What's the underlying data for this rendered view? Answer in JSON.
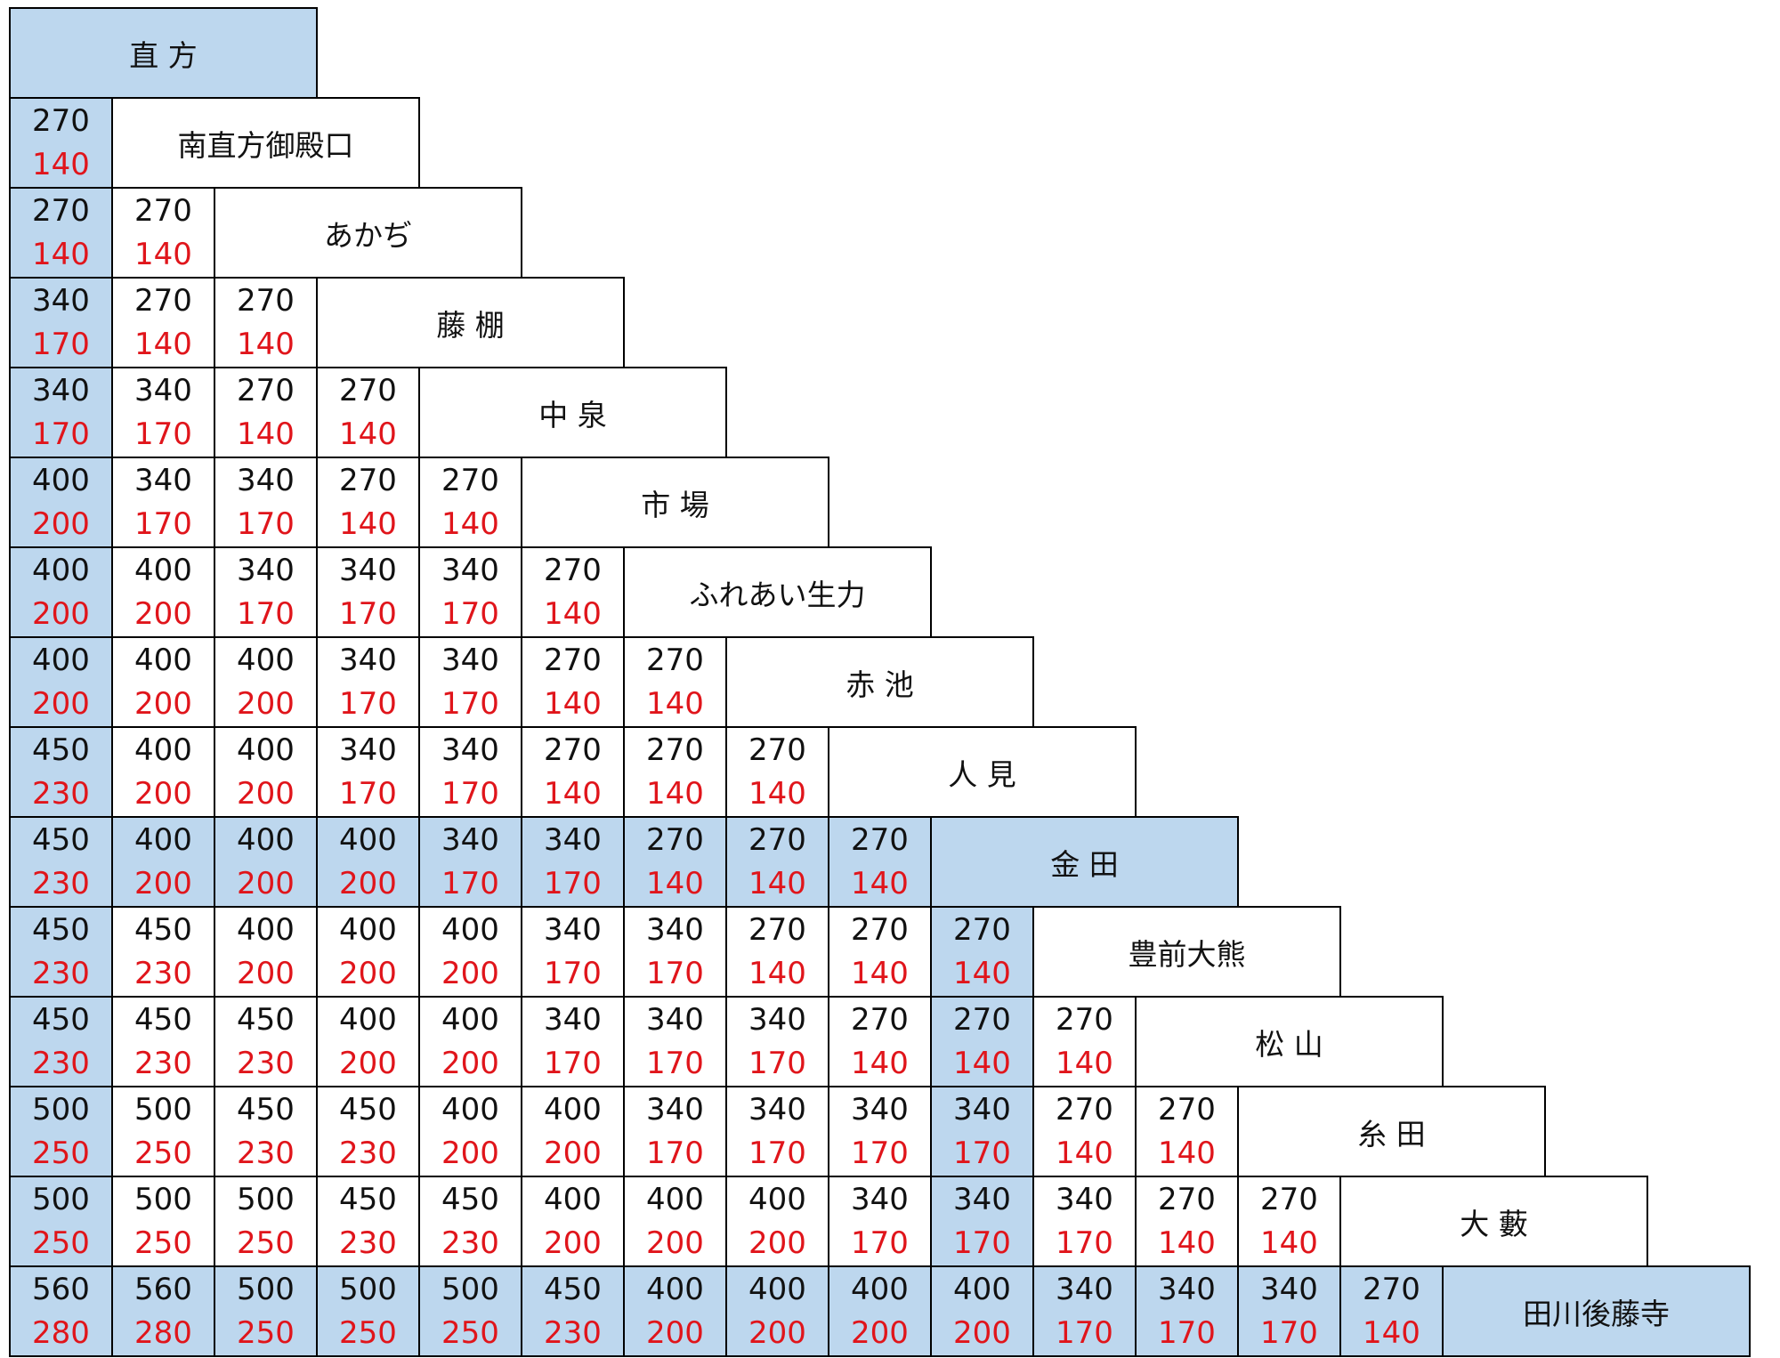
{
  "colors": {
    "highlight": "#bdd7ee",
    "adult_fare": "#111111",
    "child_fare": "#e0151b",
    "border": "#000000"
  },
  "stations": [
    "直 方",
    "南直方御殿口",
    "あかぢ",
    "藤 棚",
    "中 泉",
    "市 場",
    "ふれあい生力",
    "赤 池",
    "人 見",
    "金 田",
    "豊前大熊",
    "松 山",
    "糸 田",
    "大 藪",
    "田川後藤寺"
  ],
  "highlight": {
    "stations": [
      0,
      9,
      14
    ],
    "columns": [
      0,
      9
    ],
    "rows": [
      9,
      14
    ]
  },
  "fares": [
    [],
    [
      [
        "270",
        "140"
      ]
    ],
    [
      [
        "270",
        "140"
      ],
      [
        "270",
        "140"
      ]
    ],
    [
      [
        "340",
        "170"
      ],
      [
        "270",
        "140"
      ],
      [
        "270",
        "140"
      ]
    ],
    [
      [
        "340",
        "170"
      ],
      [
        "340",
        "170"
      ],
      [
        "270",
        "140"
      ],
      [
        "270",
        "140"
      ]
    ],
    [
      [
        "400",
        "200"
      ],
      [
        "340",
        "170"
      ],
      [
        "340",
        "170"
      ],
      [
        "270",
        "140"
      ],
      [
        "270",
        "140"
      ]
    ],
    [
      [
        "400",
        "200"
      ],
      [
        "400",
        "200"
      ],
      [
        "340",
        "170"
      ],
      [
        "340",
        "170"
      ],
      [
        "340",
        "170"
      ],
      [
        "270",
        "140"
      ]
    ],
    [
      [
        "400",
        "200"
      ],
      [
        "400",
        "200"
      ],
      [
        "400",
        "200"
      ],
      [
        "340",
        "170"
      ],
      [
        "340",
        "170"
      ],
      [
        "270",
        "140"
      ],
      [
        "270",
        "140"
      ]
    ],
    [
      [
        "450",
        "230"
      ],
      [
        "400",
        "200"
      ],
      [
        "400",
        "200"
      ],
      [
        "340",
        "170"
      ],
      [
        "340",
        "170"
      ],
      [
        "270",
        "140"
      ],
      [
        "270",
        "140"
      ],
      [
        "270",
        "140"
      ]
    ],
    [
      [
        "450",
        "230"
      ],
      [
        "400",
        "200"
      ],
      [
        "400",
        "200"
      ],
      [
        "400",
        "200"
      ],
      [
        "340",
        "170"
      ],
      [
        "340",
        "170"
      ],
      [
        "270",
        "140"
      ],
      [
        "270",
        "140"
      ],
      [
        "270",
        "140"
      ]
    ],
    [
      [
        "450",
        "230"
      ],
      [
        "450",
        "230"
      ],
      [
        "400",
        "200"
      ],
      [
        "400",
        "200"
      ],
      [
        "400",
        "200"
      ],
      [
        "340",
        "170"
      ],
      [
        "340",
        "170"
      ],
      [
        "270",
        "140"
      ],
      [
        "270",
        "140"
      ],
      [
        "270",
        "140"
      ]
    ],
    [
      [
        "450",
        "230"
      ],
      [
        "450",
        "230"
      ],
      [
        "450",
        "230"
      ],
      [
        "400",
        "200"
      ],
      [
        "400",
        "200"
      ],
      [
        "340",
        "170"
      ],
      [
        "340",
        "170"
      ],
      [
        "340",
        "170"
      ],
      [
        "270",
        "140"
      ],
      [
        "270",
        "140"
      ],
      [
        "270",
        "140"
      ]
    ],
    [
      [
        "500",
        "250"
      ],
      [
        "500",
        "250"
      ],
      [
        "450",
        "230"
      ],
      [
        "450",
        "230"
      ],
      [
        "400",
        "200"
      ],
      [
        "400",
        "200"
      ],
      [
        "340",
        "170"
      ],
      [
        "340",
        "170"
      ],
      [
        "340",
        "170"
      ],
      [
        "340",
        "170"
      ],
      [
        "270",
        "140"
      ],
      [
        "270",
        "140"
      ]
    ],
    [
      [
        "500",
        "250"
      ],
      [
        "500",
        "250"
      ],
      [
        "500",
        "250"
      ],
      [
        "450",
        "230"
      ],
      [
        "450",
        "230"
      ],
      [
        "400",
        "200"
      ],
      [
        "400",
        "200"
      ],
      [
        "400",
        "200"
      ],
      [
        "340",
        "170"
      ],
      [
        "340",
        "170"
      ],
      [
        "340",
        "170"
      ],
      [
        "270",
        "140"
      ],
      [
        "270",
        "140"
      ]
    ],
    [
      [
        "560",
        "280"
      ],
      [
        "560",
        "280"
      ],
      [
        "500",
        "250"
      ],
      [
        "500",
        "250"
      ],
      [
        "500",
        "250"
      ],
      [
        "450",
        "230"
      ],
      [
        "400",
        "200"
      ],
      [
        "400",
        "200"
      ],
      [
        "400",
        "200"
      ],
      [
        "400",
        "200"
      ],
      [
        "340",
        "170"
      ],
      [
        "340",
        "170"
      ],
      [
        "340",
        "170"
      ],
      [
        "270",
        "140"
      ]
    ]
  ]
}
